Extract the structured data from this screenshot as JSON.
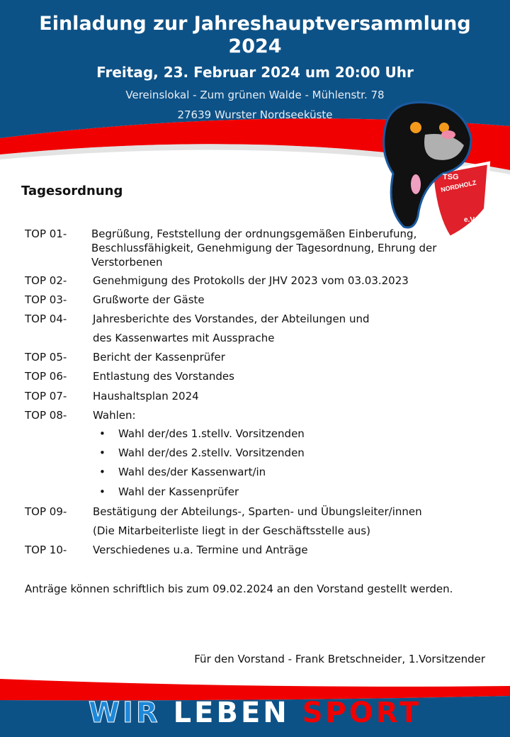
{
  "header": {
    "title": "Einladung zur Jahreshauptversammlung 2024",
    "date": "Freitag, 23. Februar 2024 um 20:00 Uhr",
    "location_line1": "Vereinslokal - Zum grünen Walde - Mühlenstr. 78",
    "location_line2": "27639 Wurster Nordseeküste"
  },
  "logo": {
    "text": "TSG NORDHOLZ u. Umg. v. 1907 e.V."
  },
  "agenda": {
    "heading": "Tagesordnung",
    "items": [
      {
        "key": "TOP 01-",
        "text": "Begrüßung, Feststellung der ordnungsgemäßen Einberufung, Beschlussfähigkeit, Genehmigung der Tagesordnung, Ehrung der Verstorbenen"
      },
      {
        "key": "TOP 02-",
        "text": "Genehmigung des Protokolls der JHV 2023 vom 03.03.2023"
      },
      {
        "key": "TOP 03-",
        "text": "Grußworte der Gäste"
      },
      {
        "key": "TOP 04-",
        "text": "Jahresberichte des Vorstandes, der Abteilungen und",
        "text2": "des Kassenwartes mit Aussprache"
      },
      {
        "key": "TOP 05-",
        "text": "Bericht der Kassenprüfer"
      },
      {
        "key": "TOP 06-",
        "text": "Entlastung des Vorstandes"
      },
      {
        "key": "TOP 07-",
        "text": "Haushaltsplan 2024"
      },
      {
        "key": "TOP 08-",
        "text": "Wahlen:",
        "bullets": [
          "Wahl der/des 1.stellv. Vorsitzenden",
          "Wahl der/des 2.stellv. Vorsitzenden",
          "Wahl des/der Kassenwart/in",
          "Wahl der Kassenprüfer"
        ]
      },
      {
        "key": "TOP 09-",
        "text": "Bestätigung der Abteilungs-, Sparten- und Übungsleiter/innen",
        "text2": "(Die Mitarbeiterliste liegt in der Geschäftsstelle aus)"
      },
      {
        "key": "TOP 10-",
        "text": "Verschiedenes u.a. Termine und Anträge"
      }
    ]
  },
  "note": "Anträge können schriftlich bis zum 09.02.2024 an den Vorstand gestellt werden.",
  "signature": "Für den Vorstand - Frank Bretschneider, 1.Vorsitzender",
  "footer": {
    "slogan": [
      "WIR",
      "LEBEN",
      "SPORT"
    ]
  },
  "colors": {
    "blue": "#0d5287",
    "red": "#f00000",
    "light_blue": "#1e88d8"
  }
}
